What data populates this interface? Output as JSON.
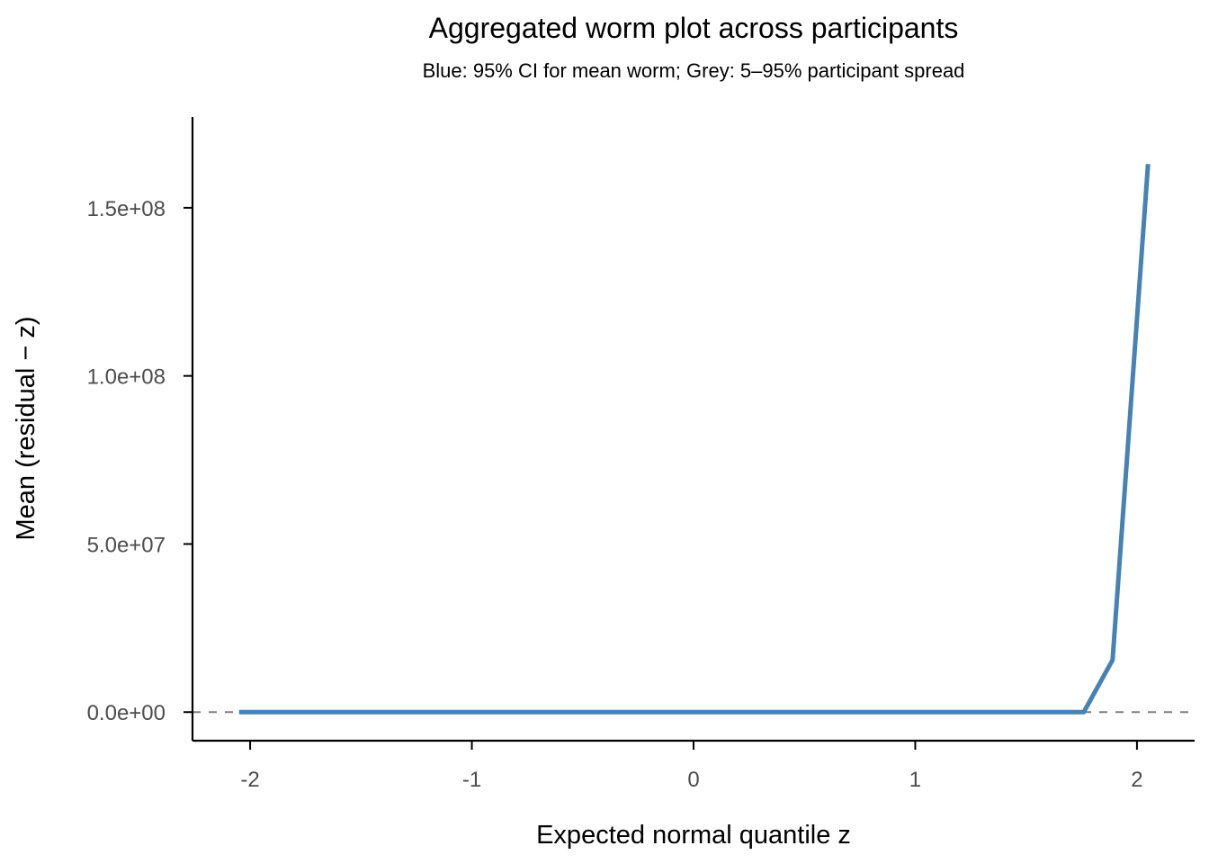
{
  "chart_data": {
    "type": "line",
    "title": "Aggregated worm plot across participants",
    "subtitle": "Blue: 95% CI for mean worm; Grey: 5–95% participant spread",
    "xlabel": "Expected normal quantile z",
    "ylabel": "Mean (residual − z)",
    "xlim": [
      -2.26,
      2.26
    ],
    "ylim": [
      -8500000,
      177000000
    ],
    "x_ticks": [
      -2,
      -1,
      0,
      1,
      2
    ],
    "x_tick_labels": [
      "-2",
      "-1",
      "0",
      "1",
      "2"
    ],
    "y_ticks": [
      0,
      50000000,
      100000000,
      150000000
    ],
    "y_tick_labels": [
      "0.0e+00",
      "5.0e+07",
      "1.0e+08",
      "1.5e+08"
    ],
    "grid": false,
    "reference_line": {
      "y": 0,
      "style": "dashed",
      "color": "#808080"
    },
    "series": [
      {
        "color": "#4682b4",
        "x": [
          -2.05,
          -1.9,
          -1.7,
          -1.5,
          -1.2,
          -0.9,
          -0.6,
          -0.3,
          0.0,
          0.3,
          0.6,
          0.9,
          1.2,
          1.5,
          1.76,
          1.89,
          2.05
        ],
        "y": [
          0,
          0,
          0,
          0,
          0,
          0,
          0,
          0,
          0,
          0,
          0,
          0,
          0,
          0,
          0,
          15500000,
          163000000
        ]
      }
    ]
  }
}
